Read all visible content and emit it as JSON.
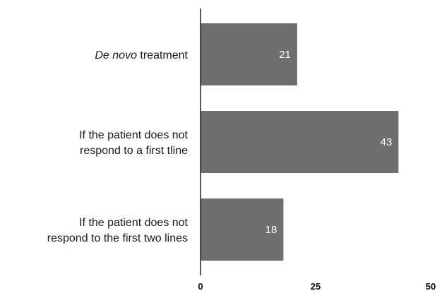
{
  "chart_data": {
    "type": "bar",
    "orientation": "horizontal",
    "categories": [
      "De novo treatment",
      "If the patient does not respond to a first tline",
      "If the patient does not respond to the first two lines"
    ],
    "category_lines": [
      [
        [
          {
            "text": "De novo",
            "italic": true
          },
          {
            "text": " treatment",
            "italic": false
          }
        ]
      ],
      [
        [
          {
            "text": "If the patient does not",
            "italic": false
          }
        ],
        [
          {
            "text": "respond to a first tline",
            "italic": false
          }
        ]
      ],
      [
        [
          {
            "text": "If the patient does not",
            "italic": false
          }
        ],
        [
          {
            "text": "respond to the first two lines",
            "italic": false
          }
        ]
      ]
    ],
    "values": [
      21,
      43,
      18
    ],
    "value_labels": [
      "21",
      "43",
      "18"
    ],
    "xlim": [
      0,
      50
    ],
    "xticks": [
      0,
      25,
      50
    ],
    "xtick_labels": [
      "0",
      "25",
      "50"
    ],
    "title": "",
    "xlabel": "",
    "ylabel": "",
    "grid": false,
    "legend": "none",
    "colors": {
      "bar": "#6e6e6e",
      "axis": "#222222",
      "category_text": "#1a1a1a",
      "value_text": "#ffffff",
      "tick_text": "#111111"
    }
  }
}
